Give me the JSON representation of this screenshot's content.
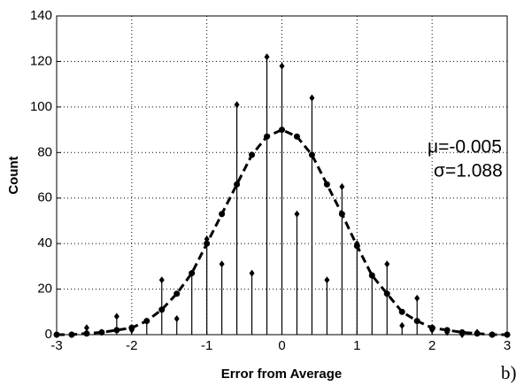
{
  "chart_data": {
    "type": "stem",
    "x_label": "Error from Average",
    "y_label": "Count",
    "annotations": [
      "μ=-0.005",
      "σ=1.088",
      "b)"
    ],
    "x": [
      -3,
      -2.8,
      -2.6,
      -2.4,
      -2.2,
      -2,
      -1.8,
      -1.6,
      -1.4,
      -1.2,
      -1,
      -0.8,
      -0.6,
      -0.4,
      -0.2,
      0,
      0.2,
      0.4,
      0.6,
      0.8,
      1,
      1.2,
      1.4,
      1.6,
      1.8,
      2,
      2.2,
      2.4,
      2.6,
      2.8,
      3
    ],
    "series": [
      {
        "color": "#000000",
        "style": "stem",
        "values": [
          0,
          0,
          3,
          1,
          8,
          2,
          6,
          24,
          7,
          27,
          42,
          31,
          101,
          27,
          122,
          118,
          53,
          104,
          24,
          65,
          40,
          26,
          31,
          4,
          16,
          2,
          1,
          0,
          1,
          0,
          0
        ]
      },
      {
        "color": "#000000",
        "style": "dashed",
        "values": [
          0,
          0,
          0.5,
          1,
          2,
          3,
          6,
          11,
          18,
          27,
          40,
          53,
          66,
          79,
          87,
          90,
          87,
          79,
          66,
          53,
          39,
          26,
          18,
          10,
          6,
          3,
          2,
          1,
          0.5,
          0,
          0
        ]
      }
    ],
    "xlim": [
      -3,
      3
    ],
    "xticks": [
      -3,
      -2,
      -1,
      0,
      1,
      2,
      3
    ],
    "ylim": [
      0,
      140
    ],
    "yticks": [
      0,
      20,
      40,
      60,
      80,
      100,
      120,
      140
    ],
    "grid": true
  }
}
